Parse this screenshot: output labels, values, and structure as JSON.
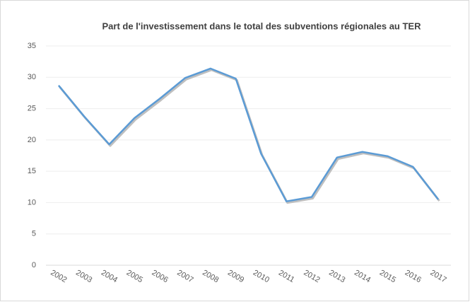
{
  "chart_data": {
    "type": "line",
    "title": "Part de l'investissement dans le total des subventions régionales au TER",
    "categories": [
      "2002",
      "2003",
      "2004",
      "2005",
      "2006",
      "2007",
      "2008",
      "2009",
      "2010",
      "2011",
      "2012",
      "2013",
      "2014",
      "2015",
      "2016",
      "2017"
    ],
    "series": [
      {
        "name": "Part de l'investissement",
        "color": "#5b9bd5",
        "values": [
          28.7,
          23.8,
          19.3,
          23.5,
          26.6,
          29.9,
          31.4,
          29.8,
          17.8,
          10.2,
          10.9,
          17.2,
          18.1,
          17.4,
          15.7,
          10.5
        ]
      }
    ],
    "ylim": [
      0,
      35
    ],
    "yticks": [
      0,
      5,
      10,
      15,
      20,
      25,
      30,
      35
    ],
    "grid": true
  }
}
